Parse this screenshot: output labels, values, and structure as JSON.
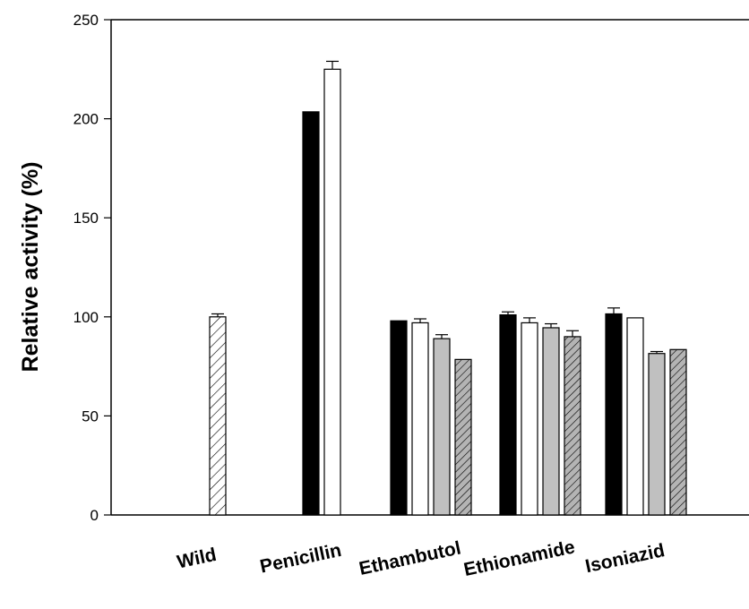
{
  "chart_data": {
    "type": "bar",
    "ylabel": "Relative activity (%)",
    "ylim": [
      0,
      250
    ],
    "yticks": [
      0,
      50,
      100,
      150,
      200,
      250
    ],
    "categories": [
      {
        "label": "Wild",
        "bars": [
          {
            "pattern": "hatch-white",
            "value": 100,
            "error": 1.5
          }
        ]
      },
      {
        "label": "Penicillin",
        "bars": [
          {
            "pattern": "solid-black",
            "value": 203.5,
            "error": 0
          },
          {
            "pattern": "white",
            "value": 225,
            "error": 4
          }
        ]
      },
      {
        "label": "Ethambutol",
        "bars": [
          {
            "pattern": "solid-black",
            "value": 98,
            "error": 0
          },
          {
            "pattern": "white",
            "value": 97,
            "error": 2
          },
          {
            "pattern": "gray",
            "value": 89,
            "error": 2
          },
          {
            "pattern": "hatch-gray",
            "value": 78.5,
            "error": 0
          }
        ]
      },
      {
        "label": "Ethionamide",
        "bars": [
          {
            "pattern": "solid-black",
            "value": 101,
            "error": 1.5
          },
          {
            "pattern": "white",
            "value": 97,
            "error": 2.5
          },
          {
            "pattern": "gray",
            "value": 94.5,
            "error": 2
          },
          {
            "pattern": "hatch-gray",
            "value": 90,
            "error": 3
          }
        ]
      },
      {
        "label": "Isoniazid",
        "bars": [
          {
            "pattern": "solid-black",
            "value": 101.5,
            "error": 3
          },
          {
            "pattern": "white",
            "value": 99.5,
            "error": 0
          },
          {
            "pattern": "gray",
            "value": 81.5,
            "error": 1
          },
          {
            "pattern": "hatch-gray",
            "value": 83.5,
            "error": 0
          }
        ]
      }
    ],
    "colors": {
      "solid-black": "#000000",
      "white": "#ffffff",
      "gray": "#c0c0c0",
      "hatch-white": "#ffffff",
      "hatch-gray": "#b4b4b4",
      "axis": "#000000"
    },
    "grid": false,
    "legend": "none"
  }
}
